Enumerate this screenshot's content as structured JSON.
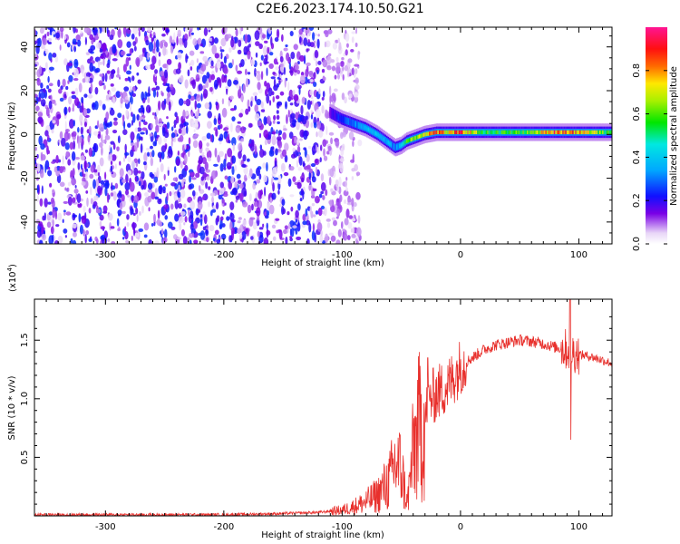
{
  "figure": {
    "title": "C2E6.2023.174.10.50.G21"
  },
  "chart_data": [
    {
      "type": "heatmap",
      "xlabel": "Height of straight line (km)",
      "ylabel": "Frequency (Hz)",
      "xlim": [
        -360,
        128
      ],
      "ylim": [
        -50,
        49
      ],
      "xticks": [
        -300,
        -200,
        -100,
        0,
        100
      ],
      "yticks": [
        -40,
        -20,
        0,
        20,
        40
      ],
      "colorbar": {
        "label": "Normalized spectral amplitude",
        "range": [
          0,
          1
        ],
        "ticks": [
          0.0,
          0.2,
          0.4,
          0.6,
          0.8
        ],
        "colormap": "rainbow (purple-blue-cyan-green-yellow-red-magenta)"
      },
      "signal_ridge": {
        "description": "frequency of peak amplitude vs height",
        "x": [
          -110,
          -100,
          -90,
          -80,
          -70,
          -60,
          -55,
          -50,
          -45,
          -40,
          -30,
          -20,
          -10,
          0,
          20,
          40,
          60,
          80,
          100,
          120,
          128
        ],
        "y": [
          10,
          7,
          5,
          3,
          0,
          -4,
          -6,
          -5,
          -3,
          -2,
          0,
          1,
          1,
          1,
          1,
          1,
          1,
          1,
          1,
          1,
          1
        ],
        "amplitude": [
          0.15,
          0.25,
          0.3,
          0.35,
          0.4,
          0.35,
          0.3,
          0.4,
          0.6,
          0.65,
          0.75,
          0.85,
          0.7,
          0.85,
          0.55,
          0.55,
          0.6,
          0.85,
          0.8,
          0.6,
          0.5
        ]
      },
      "noise_region": {
        "x_range": [
          -360,
          -100
        ],
        "amplitude_max": 0.25
      },
      "grid": false
    },
    {
      "type": "line",
      "xlabel": "Height of straight line (km)",
      "ylabel": "SNR (10 * v/v)",
      "yscale_label": "(x10",
      "yscale_exponent": "4",
      "xlim": [
        -360,
        128
      ],
      "ylim": [
        0,
        1.85
      ],
      "xticks": [
        -300,
        -200,
        -100,
        0,
        100
      ],
      "yticks": [
        0.5,
        1.0,
        1.5
      ],
      "ytick_labels": [
        "0.5",
        "1.0",
        "1.5"
      ],
      "color": "#e8302c",
      "series": [
        {
          "x": [
            -360,
            -300,
            -250,
            -200,
            -150,
            -120,
            -100,
            -90,
            -80,
            -70,
            -60,
            -55,
            -50,
            -45,
            -40,
            -35,
            -30,
            -25,
            -20,
            -15,
            -10,
            -5,
            0,
            10,
            20,
            30,
            40,
            50,
            60,
            70,
            80,
            90,
            95,
            100,
            110,
            120,
            128
          ],
          "y": [
            0.01,
            0.01,
            0.01,
            0.01,
            0.02,
            0.03,
            0.05,
            0.08,
            0.12,
            0.18,
            0.3,
            0.45,
            0.4,
            0.1,
            0.55,
            0.75,
            0.85,
            1.0,
            1.05,
            1.08,
            1.12,
            1.2,
            1.28,
            1.35,
            1.42,
            1.46,
            1.48,
            1.5,
            1.49,
            1.47,
            1.44,
            1.42,
            1.4,
            1.38,
            1.36,
            1.33,
            1.3
          ]
        }
      ],
      "grid": false
    }
  ]
}
